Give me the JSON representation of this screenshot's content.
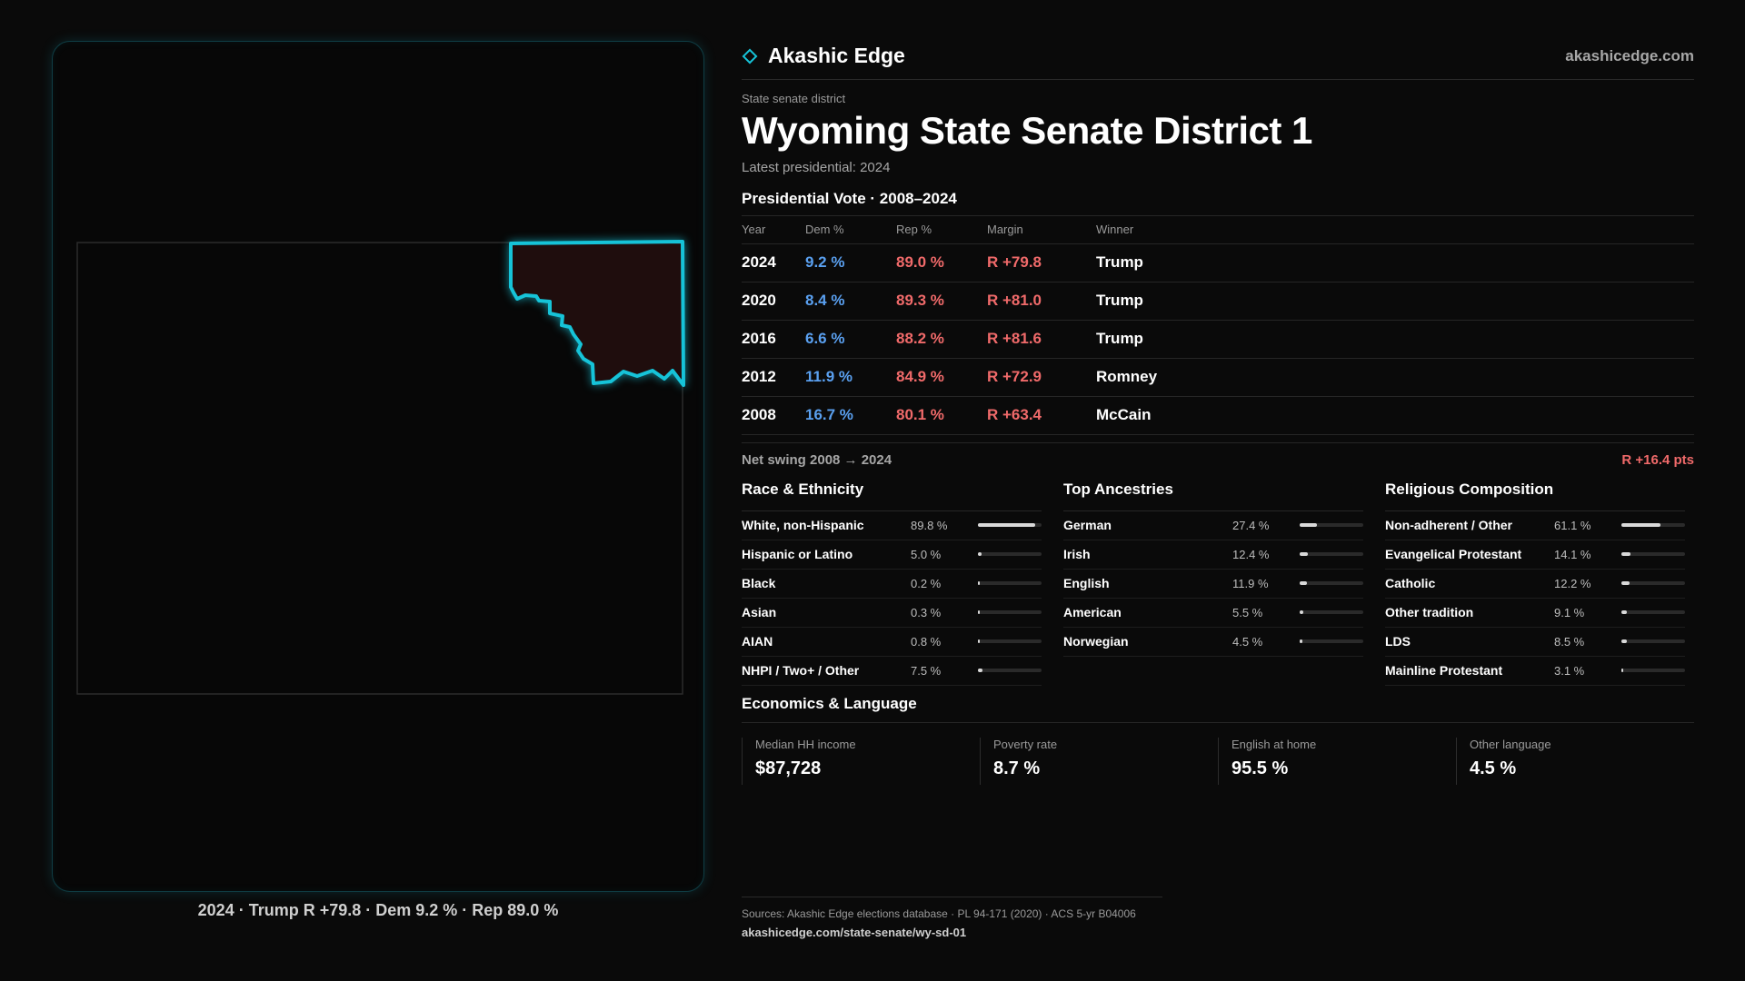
{
  "brand": {
    "name": "Akashic Edge",
    "site": "akashicedge.com"
  },
  "header": {
    "kicker": "State senate district",
    "title": "Wyoming State Senate District 1",
    "latest": "Latest presidential: 2024"
  },
  "map": {
    "caption": "2024 · Trump R +79.8 · Dem 9.2 % · Rep 89.0 %"
  },
  "presidential": {
    "title": "Presidential Vote · 2008–2024",
    "headers": {
      "year": "Year",
      "dem": "Dem %",
      "rep": "Rep %",
      "margin": "Margin",
      "winner": "Winner"
    },
    "rows": [
      {
        "year": "2024",
        "dem": "9.2 %",
        "rep": "89.0 %",
        "margin": "R +79.8",
        "winner": "Trump"
      },
      {
        "year": "2020",
        "dem": "8.4 %",
        "rep": "89.3 %",
        "margin": "R +81.0",
        "winner": "Trump"
      },
      {
        "year": "2016",
        "dem": "6.6 %",
        "rep": "88.2 %",
        "margin": "R +81.6",
        "winner": "Trump"
      },
      {
        "year": "2012",
        "dem": "11.9 %",
        "rep": "84.9 %",
        "margin": "R +72.9",
        "winner": "Romney"
      },
      {
        "year": "2008",
        "dem": "16.7 %",
        "rep": "80.1 %",
        "margin": "R +63.4",
        "winner": "McCain"
      }
    ],
    "swing_label": "Net swing 2008 → 2024",
    "swing_value": "R +16.4 pts"
  },
  "race": {
    "title": "Race & Ethnicity",
    "items": [
      {
        "name": "White, non-Hispanic",
        "pct": "89.8 %",
        "value": 89.8
      },
      {
        "name": "Hispanic or Latino",
        "pct": "5.0 %",
        "value": 5.0
      },
      {
        "name": "Black",
        "pct": "0.2 %",
        "value": 0.2
      },
      {
        "name": "Asian",
        "pct": "0.3 %",
        "value": 0.3
      },
      {
        "name": "AIAN",
        "pct": "0.8 %",
        "value": 0.8
      },
      {
        "name": "NHPI / Two+ / Other",
        "pct": "7.5 %",
        "value": 7.5
      }
    ]
  },
  "ancestry": {
    "title": "Top Ancestries",
    "items": [
      {
        "name": "German",
        "pct": "27.4 %",
        "value": 27.4
      },
      {
        "name": "Irish",
        "pct": "12.4 %",
        "value": 12.4
      },
      {
        "name": "English",
        "pct": "11.9 %",
        "value": 11.9
      },
      {
        "name": "American",
        "pct": "5.5 %",
        "value": 5.5
      },
      {
        "name": "Norwegian",
        "pct": "4.5 %",
        "value": 4.5
      }
    ]
  },
  "religion": {
    "title": "Religious Composition",
    "items": [
      {
        "name": "Non-adherent / Other",
        "pct": "61.1 %",
        "value": 61.1
      },
      {
        "name": "Evangelical Protestant",
        "pct": "14.1 %",
        "value": 14.1
      },
      {
        "name": "Catholic",
        "pct": "12.2 %",
        "value": 12.2
      },
      {
        "name": "Other tradition",
        "pct": "9.1 %",
        "value": 9.1
      },
      {
        "name": "LDS",
        "pct": "8.5 %",
        "value": 8.5
      },
      {
        "name": "Mainline Protestant",
        "pct": "3.1 %",
        "value": 3.1
      }
    ]
  },
  "economics": {
    "title": "Economics & Language",
    "stats": [
      {
        "label": "Median HH income",
        "value": "$87,728"
      },
      {
        "label": "Poverty rate",
        "value": "8.7 %"
      },
      {
        "label": "English at home",
        "value": "95.5 %"
      },
      {
        "label": "Other language",
        "value": "4.5 %"
      }
    ]
  },
  "sources": {
    "text": "Sources: Akashic Edge elections database · PL 94-171 (2020) · ACS 5-yr B04006",
    "url": "akashicedge.com/state-senate/wy-sd-01"
  },
  "colors": {
    "accent": "#16c3d8",
    "dem": "#5aa0f0",
    "rep": "#f06a6a",
    "district_fill": "#1f0d0d"
  }
}
